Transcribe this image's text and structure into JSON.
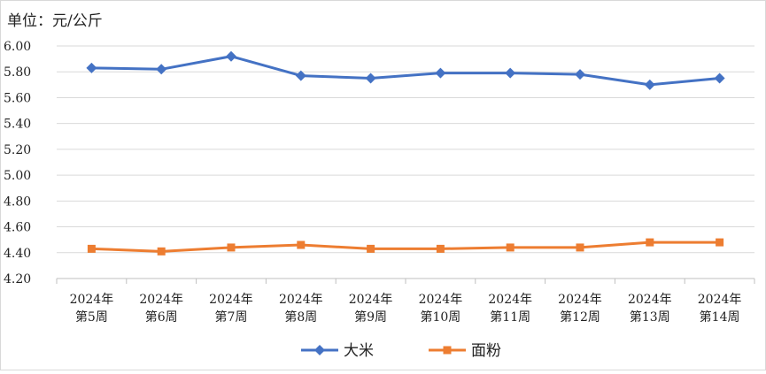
{
  "chart_data": {
    "type": "line",
    "unit_label": "单位：元/公斤",
    "categories": [
      [
        "2024年",
        "第5周"
      ],
      [
        "2024年",
        "第6周"
      ],
      [
        "2024年",
        "第7周"
      ],
      [
        "2024年",
        "第8周"
      ],
      [
        "2024年",
        "第9周"
      ],
      [
        "2024年",
        "第10周"
      ],
      [
        "2024年",
        "第11周"
      ],
      [
        "2024年",
        "第12周"
      ],
      [
        "2024年",
        "第13周"
      ],
      [
        "2024年",
        "第14周"
      ]
    ],
    "ylim": [
      4.2,
      6.0
    ],
    "yticks": [
      "6.00",
      "5.80",
      "5.60",
      "5.40",
      "5.20",
      "5.00",
      "4.80",
      "4.60",
      "4.40",
      "4.20"
    ],
    "grid": true,
    "legend_position": "bottom",
    "series": [
      {
        "name": "大米",
        "color": "#4472C4",
        "marker": "diamond",
        "values": [
          5.83,
          5.82,
          5.92,
          5.77,
          5.75,
          5.79,
          5.79,
          5.78,
          5.7,
          5.75
        ]
      },
      {
        "name": "面粉",
        "color": "#ED7D31",
        "marker": "square",
        "values": [
          4.43,
          4.41,
          4.44,
          4.46,
          4.43,
          4.43,
          4.44,
          4.44,
          4.48,
          4.48
        ]
      }
    ]
  }
}
